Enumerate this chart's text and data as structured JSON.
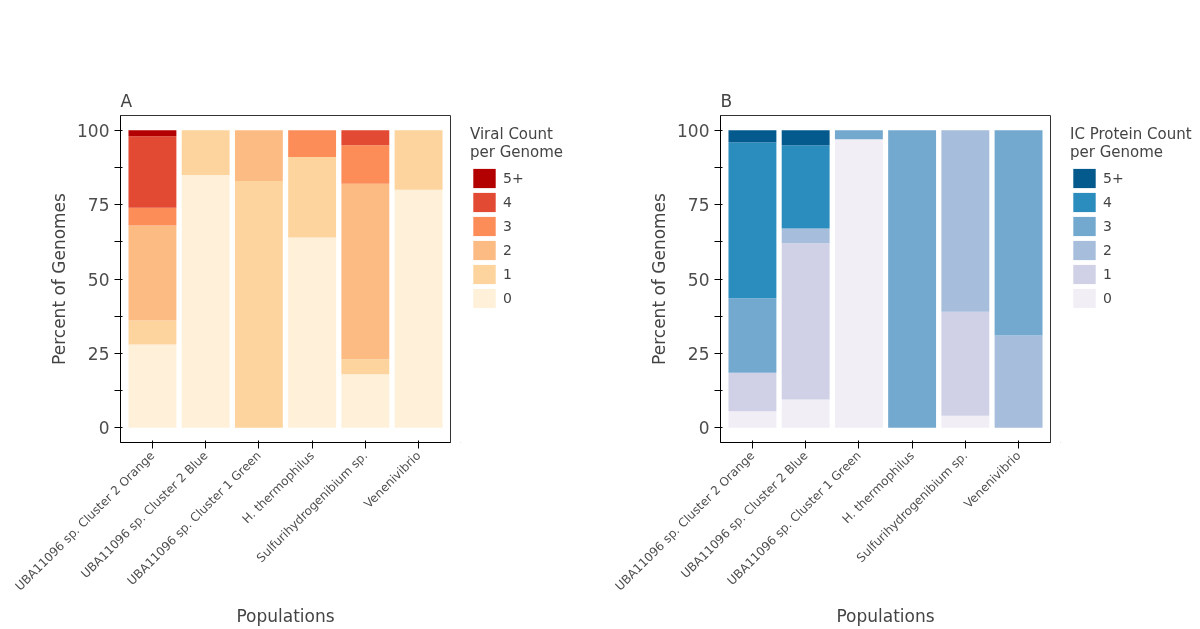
{
  "chart_data": [
    {
      "type": "bar",
      "title": "A",
      "xlabel": "Populations",
      "ylabel": "Percent of Genomes",
      "legend_title": "Viral Count\nper Genome",
      "categories": [
        "UBA11096 sp. Cluster 2 Orange",
        "UBA11096 sp. Cluster 2 Blue",
        "UBA11096 sp. Cluster 1 Green",
        "H. thermophilus",
        "Sulfurihydrogenibium sp.",
        "Venenivibrio"
      ],
      "stacked": true,
      "legend": "right",
      "grid": false,
      "ylim": [
        -5,
        105
      ],
      "yticks": [
        0,
        {
          "value": 12.5,
          "label": null
        },
        25,
        {
          "value": 37.5,
          "label": null
        },
        50,
        {
          "value": 62.5,
          "label": null
        },
        75,
        {
          "value": 87.5,
          "label": null
        },
        100
      ],
      "series": [
        {
          "name": "0",
          "color": "#fef0d9",
          "values": [
            28,
            85,
            0,
            64,
            18,
            80
          ]
        },
        {
          "name": "1",
          "color": "#fdd49e",
          "values": [
            8,
            15,
            83,
            27,
            5,
            20
          ]
        },
        {
          "name": "2",
          "color": "#fdbb84",
          "values": [
            32,
            0,
            17,
            0,
            59,
            0
          ]
        },
        {
          "name": "3",
          "color": "#fc8d59",
          "values": [
            6,
            0,
            0,
            9,
            13,
            0
          ]
        },
        {
          "name": "4",
          "color": "#e34a33",
          "values": [
            24,
            0,
            0,
            0,
            5,
            0
          ]
        },
        {
          "name": "5+",
          "color": "#b30000",
          "values": [
            2,
            0,
            0,
            0,
            0,
            0
          ]
        }
      ]
    },
    {
      "type": "bar",
      "title": "B",
      "xlabel": "Populations",
      "ylabel": "Percent of Genomes",
      "legend_title": "IC Protein Count\nper Genome",
      "categories": [
        "UBA11096 sp. Cluster 2 Orange",
        "UBA11096 sp. Cluster 2 Blue",
        "UBA11096 sp. Cluster 1 Green",
        "H. thermophilus",
        "Sulfurihydrogenibium sp.",
        "Venenivibrio"
      ],
      "stacked": true,
      "legend": "right",
      "grid": false,
      "ylim": [
        -5,
        105
      ],
      "yticks": [
        0,
        {
          "value": 12.5,
          "label": null
        },
        25,
        {
          "value": 37.5,
          "label": null
        },
        50,
        {
          "value": 62.5,
          "label": null
        },
        75,
        {
          "value": 87.5,
          "label": null
        },
        100
      ],
      "series": [
        {
          "name": "0",
          "color": "#f1eef6",
          "values": [
            5.5,
            9.5,
            97,
            0,
            4,
            0
          ]
        },
        {
          "name": "1",
          "color": "#d0d1e6",
          "values": [
            13,
            52.5,
            0,
            0,
            35,
            0
          ]
        },
        {
          "name": "2",
          "color": "#a6bddb",
          "values": [
            0,
            5,
            0,
            0,
            61,
            31
          ]
        },
        {
          "name": "3",
          "color": "#74a9cf",
          "values": [
            25,
            0,
            3,
            100,
            0,
            69
          ]
        },
        {
          "name": "4",
          "color": "#2b8cbe",
          "values": [
            52.5,
            28,
            0,
            0,
            0,
            0
          ]
        },
        {
          "name": "5+",
          "color": "#045a8d",
          "values": [
            4,
            5,
            0,
            0,
            0,
            0
          ]
        }
      ]
    }
  ]
}
